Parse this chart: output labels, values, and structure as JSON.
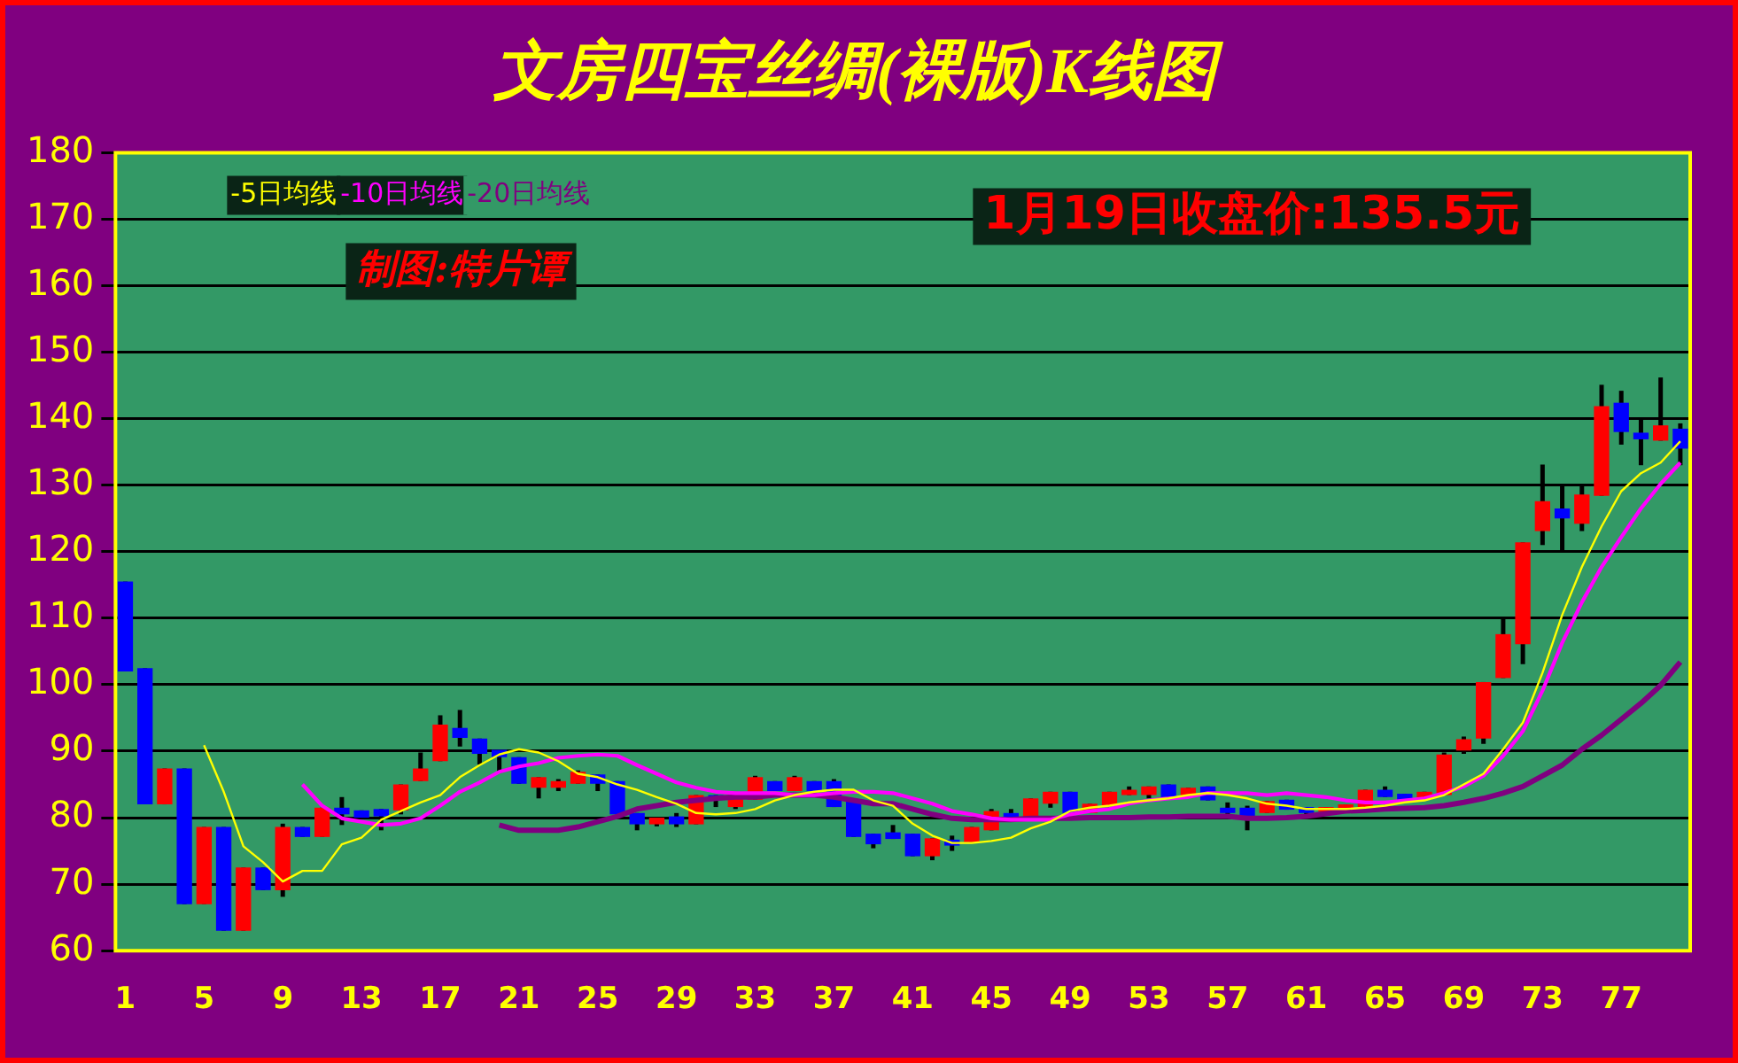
{
  "chart_data": {
    "type": "candlestick",
    "title": "文房四宝丝绸(裸版)K线图",
    "categories": [
      "1",
      null,
      null,
      null,
      "5",
      null,
      null,
      null,
      "9",
      null,
      null,
      null,
      "13",
      null,
      null,
      null,
      "17",
      null,
      null,
      null,
      "21",
      null,
      null,
      null,
      "25",
      null,
      null,
      null,
      "29",
      null,
      null,
      null,
      "33",
      null,
      null,
      null,
      "37",
      null,
      null,
      null,
      "41",
      null,
      null,
      null,
      "45",
      null,
      null,
      null,
      "49",
      null,
      null,
      null,
      "53",
      null,
      null,
      null,
      "57",
      null,
      null,
      null,
      "61",
      null,
      null,
      null,
      "65",
      null,
      null,
      null,
      "69",
      null,
      null,
      null,
      "73",
      null,
      null,
      null,
      "77",
      null,
      null,
      null
    ],
    "ohlc": [
      [
        115.5,
        115.5,
        102,
        102
      ],
      [
        102.5,
        102.5,
        82,
        82
      ],
      [
        82,
        87.4,
        82,
        87.4
      ],
      [
        87.4,
        87.4,
        67,
        67
      ],
      [
        67,
        78.6,
        67,
        78.6
      ],
      [
        78.6,
        78.6,
        63,
        63
      ],
      [
        63,
        72.5,
        63,
        72.5
      ],
      [
        72.5,
        72.5,
        69.1,
        69.1
      ],
      [
        69.1,
        79.1,
        68.1,
        78.6
      ],
      [
        78.6,
        78.6,
        77.1,
        77.1
      ],
      [
        77.1,
        81.5,
        77.1,
        81.5
      ],
      [
        81.5,
        83.1,
        78.9,
        80.5
      ],
      [
        81.1,
        81.1,
        80,
        80
      ],
      [
        81.3,
        81.3,
        78.1,
        80.2
      ],
      [
        81.1,
        85,
        80.5,
        85
      ],
      [
        85.5,
        89.8,
        85.5,
        87.4
      ],
      [
        88.5,
        95.4,
        88.5,
        94
      ],
      [
        93.5,
        96.2,
        90.7,
        92
      ],
      [
        91.9,
        91.9,
        88,
        89.6
      ],
      [
        90.2,
        90.2,
        86.7,
        89.1
      ],
      [
        89.1,
        89.1,
        85.1,
        85.1
      ],
      [
        84.5,
        86.1,
        82.9,
        86.1
      ],
      [
        84.5,
        85.8,
        84,
        85.5
      ],
      [
        85.1,
        87.1,
        85.1,
        86.9
      ],
      [
        86.5,
        86.5,
        84,
        85.1
      ],
      [
        85.5,
        85.5,
        80.5,
        80.5
      ],
      [
        80.7,
        80.7,
        78.1,
        79
      ],
      [
        79,
        80,
        78.7,
        80
      ],
      [
        80.2,
        80.7,
        78.6,
        79
      ],
      [
        79,
        83.4,
        79,
        83.4
      ],
      [
        83.4,
        83.4,
        81.6,
        82.7
      ],
      [
        81.6,
        82.9,
        81.3,
        82.9
      ],
      [
        82.7,
        86.3,
        82.7,
        86.1
      ],
      [
        85.5,
        85.5,
        84,
        84
      ],
      [
        84,
        86.3,
        84,
        86.1
      ],
      [
        85.5,
        85.5,
        84,
        84
      ],
      [
        85.5,
        85.8,
        81.6,
        81.6
      ],
      [
        82.7,
        82.7,
        77.1,
        77.1
      ],
      [
        77.6,
        77.6,
        75.4,
        76
      ],
      [
        77.8,
        78.9,
        76.8,
        76.8
      ],
      [
        77.6,
        77.6,
        74.2,
        74.2
      ],
      [
        74.2,
        76.9,
        73.6,
        76.9
      ],
      [
        76.7,
        77.3,
        75,
        75.8
      ],
      [
        76.3,
        78.6,
        76.3,
        78.6
      ],
      [
        78.1,
        81.3,
        78.1,
        81
      ],
      [
        80.7,
        81.3,
        79.7,
        79.7
      ],
      [
        79.9,
        82.9,
        79.9,
        82.9
      ],
      [
        82.1,
        83.9,
        81.5,
        83.9
      ],
      [
        83.9,
        83.9,
        80.7,
        80.7
      ],
      [
        80.7,
        82.1,
        80.7,
        82.1
      ],
      [
        81.8,
        83.9,
        81.8,
        83.9
      ],
      [
        83.4,
        84.7,
        83.4,
        84.2
      ],
      [
        83.4,
        84.7,
        82.9,
        84.7
      ],
      [
        85,
        85,
        83.1,
        83.1
      ],
      [
        83.1,
        84.5,
        83.1,
        84.5
      ],
      [
        84.7,
        84.7,
        82.6,
        82.6
      ],
      [
        81.5,
        82.3,
        80.5,
        80.7
      ],
      [
        81.5,
        81.8,
        78.1,
        79.9
      ],
      [
        80.7,
        82.5,
        80.7,
        82.5
      ],
      [
        82.7,
        82.7,
        81.2,
        81.2
      ],
      [
        81.6,
        81.6,
        80.5,
        80.7
      ],
      [
        80.9,
        81.6,
        80.9,
        81.6
      ],
      [
        81.1,
        82,
        81.1,
        82
      ],
      [
        81.6,
        84.2,
        81.6,
        84.2
      ],
      [
        84.2,
        84.7,
        83.1,
        83.1
      ],
      [
        83.6,
        83.6,
        82.5,
        82.5
      ],
      [
        82.7,
        83.9,
        82.7,
        83.9
      ],
      [
        83.4,
        89.8,
        83.4,
        89.5
      ],
      [
        90.1,
        92.2,
        89.6,
        91.8
      ],
      [
        91.9,
        100.4,
        91.1,
        100.4
      ],
      [
        101,
        110.1,
        101,
        107.6
      ],
      [
        106.1,
        121.4,
        103.1,
        121.4
      ],
      [
        123.1,
        133.1,
        121,
        127.6
      ],
      [
        126.5,
        130,
        120.1,
        125
      ],
      [
        124.2,
        130,
        123.1,
        128.6
      ],
      [
        128.4,
        145.1,
        128.4,
        141.9
      ],
      [
        142.4,
        144.2,
        136.1,
        138
      ],
      [
        137.9,
        140.1,
        133,
        136.9
      ],
      [
        136.7,
        146.2,
        136.7,
        139
      ],
      [
        138.5,
        139.3,
        133,
        135.5
      ]
    ],
    "colors": [
      "#0000ff",
      "#0000ff",
      "#ff0000",
      "#0000ff",
      "#ff0000",
      "#0000ff",
      "#ff0000",
      "#0000ff",
      "#ff0000",
      "#0000ff",
      "#ff0000",
      "#0000ff",
      "#0000ff",
      "#0000ff",
      "#ff0000",
      "#ff0000",
      "#ff0000",
      "#0000ff",
      "#0000ff",
      "#0000ff",
      "#0000ff",
      "#ff0000",
      "#ff0000",
      "#ff0000",
      "#0000ff",
      "#0000ff",
      "#0000ff",
      "#ff0000",
      "#0000ff",
      "#ff0000",
      "#0000ff",
      "#ff0000",
      "#ff0000",
      "#0000ff",
      "#ff0000",
      "#0000ff",
      "#0000ff",
      "#0000ff",
      "#0000ff",
      "#0000ff",
      "#0000ff",
      "#ff0000",
      "#0000ff",
      "#ff0000",
      "#ff0000",
      "#0000ff",
      "#ff0000",
      "#ff0000",
      "#0000ff",
      "#ff0000",
      "#ff0000",
      "#ff0000",
      "#ff0000",
      "#0000ff",
      "#ff0000",
      "#0000ff",
      "#0000ff",
      "#0000ff",
      "#ff0000",
      "#0000ff",
      "#0000ff",
      "#ff0000",
      "#ff0000",
      "#ff0000",
      "#0000ff",
      "#0000ff",
      "#ff0000",
      "#ff0000",
      "#ff0000",
      "#ff0000",
      "#ff0000",
      "#ff0000",
      "#ff0000",
      "#0000ff",
      "#ff0000",
      "#ff0000",
      "#0000ff",
      "#0000ff",
      "#ff0000",
      "#0000ff"
    ],
    "series": [
      {
        "name": "-5日均线",
        "type": "line",
        "color": "#ffff00",
        "values": [
          null,
          null,
          null,
          null,
          90.9,
          83.9,
          75.7,
          73.3,
          70.4,
          72,
          72,
          76,
          77,
          79.7,
          81,
          82.3,
          83.4,
          86.1,
          87.9,
          89.5,
          90.3,
          89.8,
          88.5,
          86.6,
          86.1,
          85,
          84.2,
          83.1,
          82.1,
          80.7,
          80.5,
          80.7,
          81.3,
          82.6,
          83.4,
          83.9,
          84.2,
          84.2,
          82.6,
          81.8,
          79.1,
          77.3,
          76.2,
          76.2,
          76.5,
          77,
          78.4,
          79.4,
          81,
          81.5,
          81.8,
          82.3,
          82.6,
          82.9,
          83.4,
          83.7,
          83.4,
          82.9,
          82.1,
          81.8,
          81.3,
          81.3,
          81.3,
          81.5,
          81.8,
          82.3,
          82.6,
          83.4,
          85,
          86.6,
          90.3,
          94.3,
          101.8,
          110.5,
          117.7,
          123.8,
          129.1,
          131.8,
          133.4,
          136.6
        ]
      },
      {
        "name": "-10日均线",
        "type": "line",
        "color": "#ff00ff",
        "values": [
          null,
          null,
          null,
          null,
          null,
          null,
          null,
          null,
          null,
          85,
          81.8,
          79.9,
          79.4,
          78.9,
          79.1,
          79.9,
          81.8,
          83.9,
          85.3,
          86.9,
          87.7,
          88.2,
          89,
          89.3,
          89.5,
          89.3,
          87.9,
          86.6,
          85.3,
          84.5,
          83.9,
          83.7,
          83.7,
          83.7,
          83.4,
          83.4,
          83.7,
          83.9,
          83.9,
          83.7,
          82.9,
          82.1,
          81,
          80.5,
          79.9,
          79.7,
          79.7,
          79.7,
          80.5,
          81,
          81.3,
          82.1,
          82.6,
          82.9,
          83.1,
          83.7,
          83.7,
          83.7,
          83.4,
          83.7,
          83.4,
          83.1,
          82.6,
          82.3,
          82.3,
          82.6,
          82.9,
          83.7,
          84.7,
          86.3,
          89.3,
          93,
          99.1,
          106.3,
          112.4,
          117.7,
          122.2,
          126.5,
          130.2,
          133.4
        ]
      },
      {
        "name": "-20日均线",
        "type": "line",
        "color": "#800080",
        "values": [
          null,
          null,
          null,
          null,
          null,
          null,
          null,
          null,
          null,
          null,
          null,
          null,
          null,
          null,
          null,
          null,
          null,
          null,
          null,
          78.9,
          78.1,
          78.1,
          78.1,
          78.6,
          79.4,
          80.2,
          81.3,
          81.8,
          82.3,
          82.6,
          82.9,
          83.1,
          83.1,
          83.4,
          83.4,
          83.4,
          83.1,
          82.6,
          82.1,
          82.1,
          81.3,
          80.5,
          79.9,
          79.7,
          79.7,
          79.7,
          79.9,
          79.9,
          79.9,
          80,
          80,
          80,
          80.1,
          80.1,
          80.2,
          80.2,
          80.2,
          79.9,
          79.9,
          80,
          80.2,
          80.6,
          81,
          81.1,
          81.3,
          81.4,
          81.5,
          81.8,
          82.3,
          82.9,
          83.7,
          84.7,
          86.3,
          87.9,
          90.3,
          92.4,
          94.8,
          97.2,
          99.9,
          103.4
        ]
      }
    ],
    "ylim": [
      60,
      180
    ],
    "yticks": [
      60,
      70,
      80,
      90,
      100,
      110,
      120,
      130,
      140,
      150,
      160,
      170,
      180
    ],
    "grid": "y",
    "legend": "top left",
    "annotations": [
      "1月19日收盘价:135.5元",
      "制图:特片谭"
    ]
  }
}
